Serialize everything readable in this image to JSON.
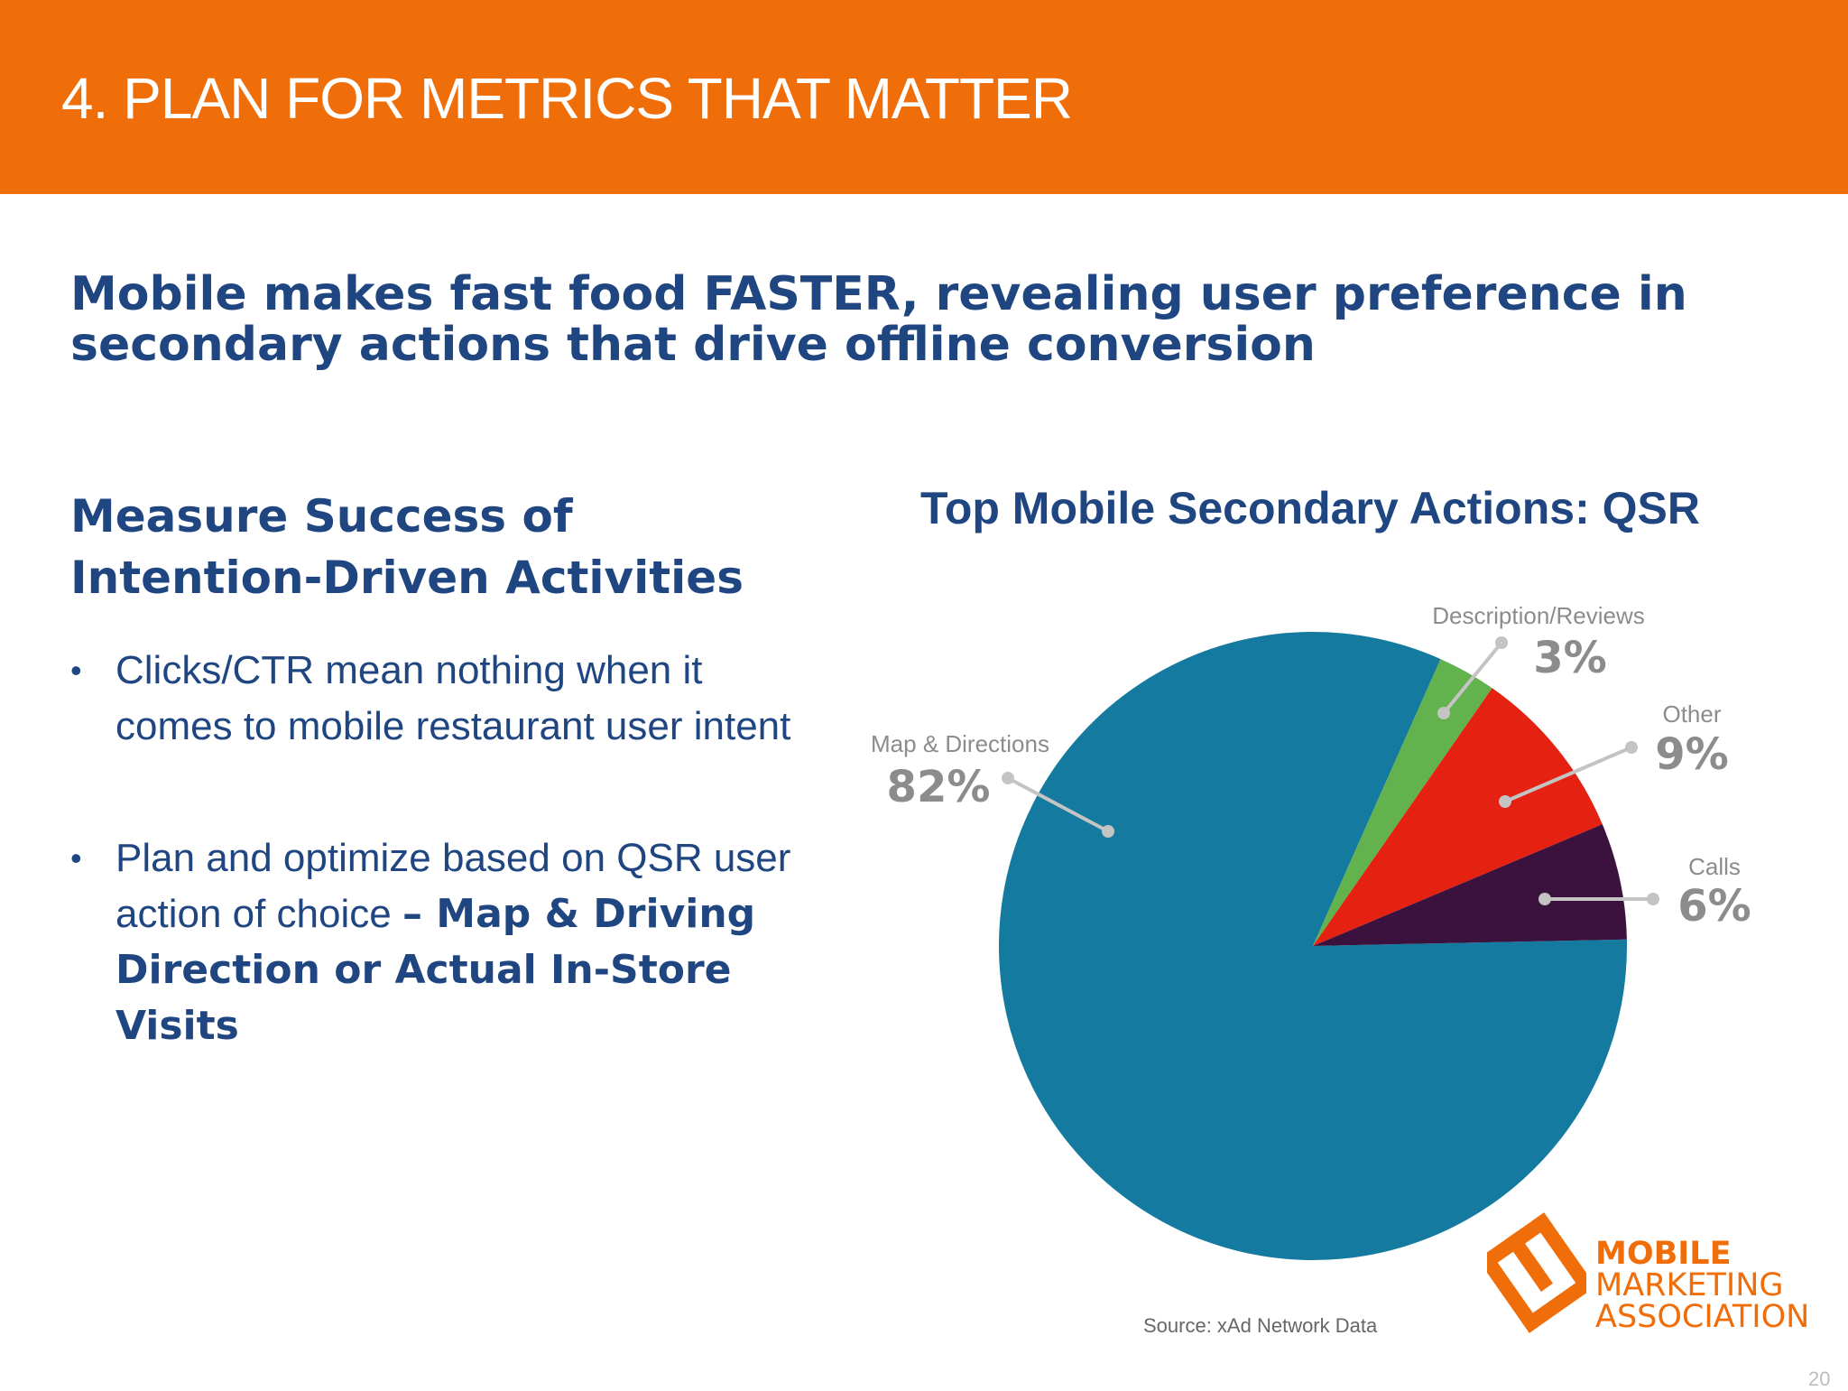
{
  "header": {
    "title": "4. PLAN FOR METRICS THAT MATTER"
  },
  "subtitle": {
    "line1": "Mobile makes fast food FASTER, revealing user preference in",
    "line2": "secondary actions that drive offline conversion"
  },
  "left": {
    "heading_line1": "Measure Success of",
    "heading_line2": "Intention-Driven Activities",
    "bullet_glyph": "•",
    "bullets": [
      {
        "text": "Clicks/CTR mean nothing when it comes to mobile restaurant user intent",
        "bold": ""
      },
      {
        "text": "Plan and optimize based on QSR user action of choice ",
        "bold": "– Map & Driving Direction or Actual In-Store Visits"
      }
    ]
  },
  "chart_data": {
    "type": "pie",
    "title": "Top Mobile Secondary Actions: QSR",
    "slices": [
      {
        "label": "Map & Directions",
        "value": 82,
        "value_label": "82%",
        "color": "#157aa0"
      },
      {
        "label": "Description/Reviews",
        "value": 3,
        "value_label": "3%",
        "color": "#62b24d"
      },
      {
        "label": "Other",
        "value": 9,
        "value_label": "9%",
        "color": "#e52212"
      },
      {
        "label": "Calls",
        "value": 6,
        "value_label": "6%",
        "color": "#3b123e"
      }
    ],
    "label_color": "#8c8c8c",
    "leader_color": "#c4c4c4"
  },
  "source": "Source: xAd Network Data",
  "logo": {
    "line1": "MOBILE",
    "line2": "MARKETING",
    "line3": "ASSOCIATION",
    "color": "#f06e0a"
  },
  "page_number": "20"
}
